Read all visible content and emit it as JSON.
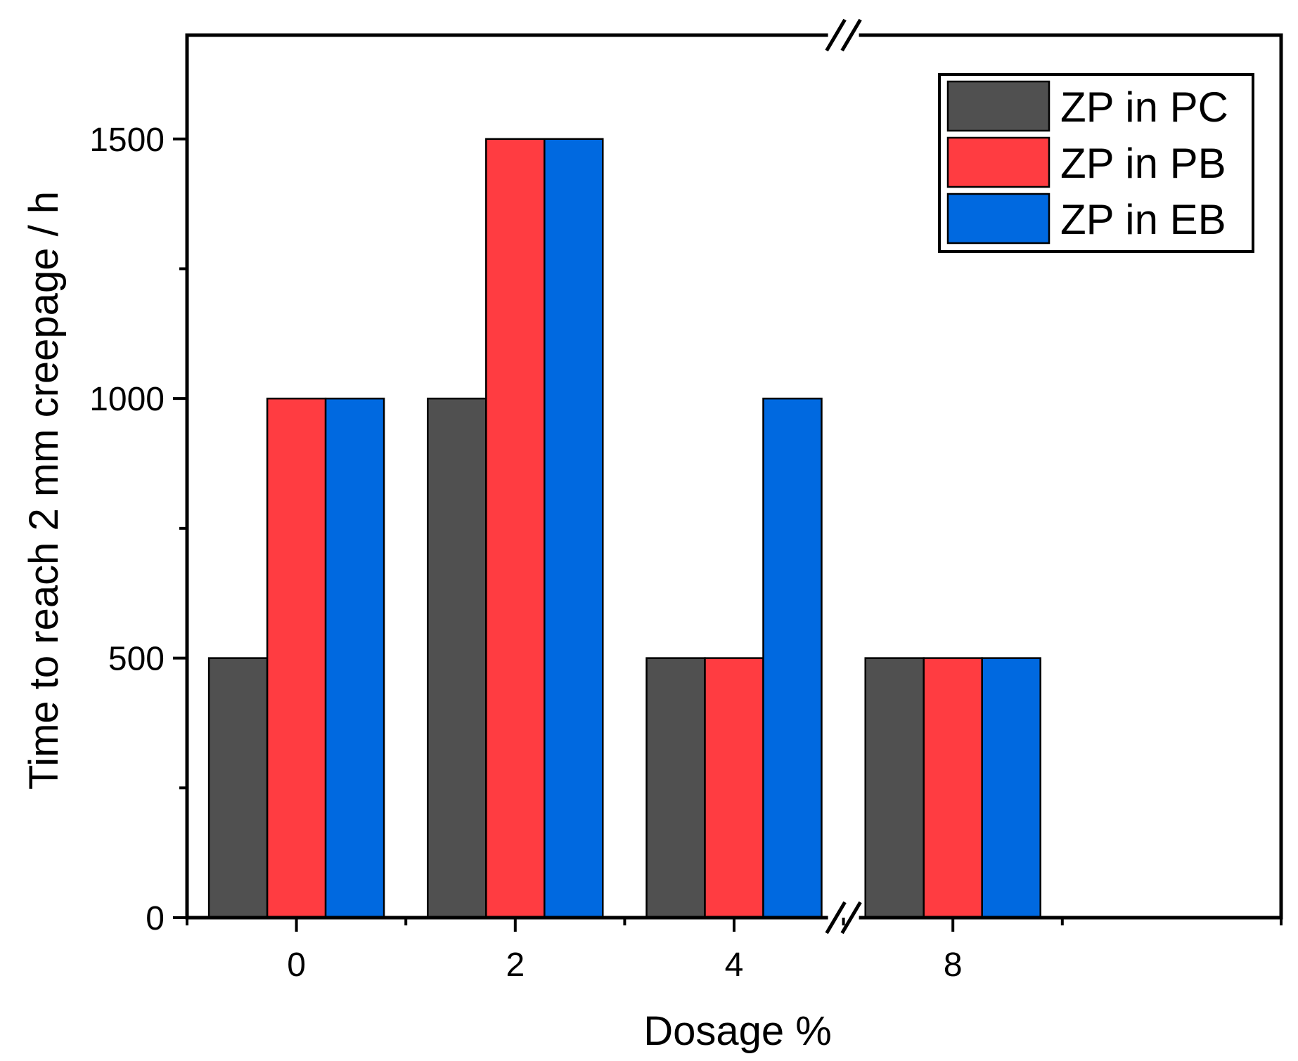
{
  "chart_data": {
    "type": "bar",
    "xlabel": "Dosage %",
    "ylabel": "Time to reach 2 mm creepage / h",
    "categories": [
      "0",
      "2",
      "4",
      "8"
    ],
    "series": [
      {
        "name": "ZP in PC",
        "color": "#505050",
        "values": [
          500,
          1000,
          500,
          500
        ]
      },
      {
        "name": "ZP in PB",
        "color": "#ff3c41",
        "values": [
          1000,
          1500,
          500,
          500
        ]
      },
      {
        "name": "ZP in EB",
        "color": "#0069e0",
        "values": [
          1000,
          1500,
          1000,
          500
        ]
      }
    ],
    "ylim": [
      0,
      1700
    ],
    "yticks": [
      0,
      500,
      1000,
      1500
    ],
    "y_minor_ticks": [
      250,
      750,
      1250
    ],
    "xlim": [
      -1,
      9
    ],
    "x_positions": [
      0,
      2,
      4,
      6
    ],
    "x_tick_labels": [
      "0",
      "2",
      "4",
      "8"
    ],
    "x_minor_ticks": [
      -1,
      1,
      3,
      5,
      7,
      9
    ],
    "axis_break": "between 4 and 8",
    "legend_position": "top-right",
    "grid": false
  }
}
